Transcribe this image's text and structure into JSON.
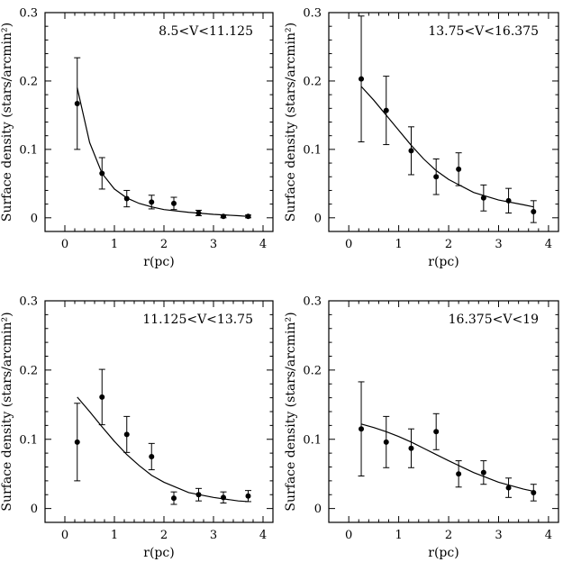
{
  "chart_data": [
    {
      "type": "scatter",
      "title": "8.5<V<11.125",
      "xlabel": "r(pc)",
      "ylabel": "Surface density (stars/arcmin²)",
      "xlim": [
        -0.4,
        4.2
      ],
      "ylim": [
        -0.02,
        0.3
      ],
      "xticks": [
        0,
        1,
        2,
        3,
        4
      ],
      "yticks": [
        0,
        0.1,
        0.2,
        0.3
      ],
      "xtick_labels": [
        "0",
        "1",
        "2",
        "3",
        "4"
      ],
      "ytick_labels": [
        "0",
        "0.1",
        "0.2",
        "0.3"
      ],
      "points": {
        "x": [
          0.25,
          0.75,
          1.25,
          1.75,
          2.2,
          2.7,
          3.2,
          3.7
        ],
        "y": [
          0.167,
          0.065,
          0.028,
          0.023,
          0.021,
          0.007,
          0.002,
          0.002
        ],
        "yerr": [
          0.067,
          0.023,
          0.012,
          0.01,
          0.009,
          0.004,
          0.002,
          0.002
        ]
      },
      "model": {
        "x": [
          0.25,
          0.5,
          0.75,
          1.0,
          1.25,
          1.5,
          1.75,
          2.0,
          2.5,
          3.0,
          3.5,
          3.7
        ],
        "y": [
          0.19,
          0.11,
          0.065,
          0.042,
          0.029,
          0.021,
          0.016,
          0.012,
          0.008,
          0.005,
          0.003,
          0.002
        ]
      }
    },
    {
      "type": "scatter",
      "title": "13.75<V<16.375",
      "xlabel": "r(pc)",
      "ylabel": "Surface density (stars/arcmin²)",
      "xlim": [
        -0.4,
        4.2
      ],
      "ylim": [
        -0.02,
        0.3
      ],
      "xticks": [
        0,
        1,
        2,
        3,
        4
      ],
      "yticks": [
        0,
        0.1,
        0.2,
        0.3
      ],
      "xtick_labels": [
        "0",
        "1",
        "2",
        "3",
        "4"
      ],
      "ytick_labels": [
        "0",
        "0.1",
        "0.2",
        "0.3"
      ],
      "points": {
        "x": [
          0.25,
          0.75,
          1.25,
          1.75,
          2.2,
          2.7,
          3.2,
          3.7
        ],
        "y": [
          0.203,
          0.157,
          0.098,
          0.06,
          0.071,
          0.029,
          0.025,
          0.009
        ],
        "yerr": [
          0.092,
          0.05,
          0.035,
          0.026,
          0.024,
          0.019,
          0.018,
          0.016
        ]
      },
      "model": {
        "x": [
          0.25,
          0.5,
          0.75,
          1.0,
          1.25,
          1.5,
          1.75,
          2.0,
          2.5,
          3.0,
          3.5,
          3.7
        ],
        "y": [
          0.192,
          0.172,
          0.15,
          0.128,
          0.106,
          0.086,
          0.069,
          0.056,
          0.037,
          0.026,
          0.019,
          0.016
        ]
      }
    },
    {
      "type": "scatter",
      "title": "11.125<V<13.75",
      "xlabel": "r(pc)",
      "ylabel": "Surface density (stars/arcmin²)",
      "xlim": [
        -0.4,
        4.2
      ],
      "ylim": [
        -0.02,
        0.3
      ],
      "xticks": [
        0,
        1,
        2,
        3,
        4
      ],
      "yticks": [
        0,
        0.1,
        0.2,
        0.3
      ],
      "xtick_labels": [
        "0",
        "1",
        "2",
        "3",
        "4"
      ],
      "ytick_labels": [
        "0",
        "0.1",
        "0.2",
        "0.3"
      ],
      "points": {
        "x": [
          0.25,
          0.75,
          1.25,
          1.75,
          2.2,
          2.7,
          3.2,
          3.7
        ],
        "y": [
          0.096,
          0.161,
          0.107,
          0.075,
          0.015,
          0.02,
          0.016,
          0.018
        ],
        "yerr": [
          0.056,
          0.04,
          0.026,
          0.019,
          0.009,
          0.009,
          0.008,
          0.008
        ]
      },
      "model": {
        "x": [
          0.25,
          0.5,
          0.75,
          1.0,
          1.25,
          1.5,
          1.75,
          2.0,
          2.5,
          3.0,
          3.5,
          3.7
        ],
        "y": [
          0.161,
          0.14,
          0.118,
          0.097,
          0.078,
          0.062,
          0.048,
          0.038,
          0.023,
          0.016,
          0.011,
          0.01
        ]
      }
    },
    {
      "type": "scatter",
      "title": "16.375<V<19",
      "xlabel": "r(pc)",
      "ylabel": "Surface density (stars/arcmin²)",
      "xlim": [
        -0.4,
        4.2
      ],
      "ylim": [
        -0.02,
        0.3
      ],
      "xticks": [
        0,
        1,
        2,
        3,
        4
      ],
      "yticks": [
        0,
        0.1,
        0.2,
        0.3
      ],
      "xtick_labels": [
        "0",
        "1",
        "2",
        "3",
        "4"
      ],
      "ytick_labels": [
        "0",
        "0.1",
        "0.2",
        "0.3"
      ],
      "points": {
        "x": [
          0.25,
          0.75,
          1.25,
          1.75,
          2.2,
          2.7,
          3.2,
          3.7
        ],
        "y": [
          0.115,
          0.096,
          0.087,
          0.111,
          0.05,
          0.052,
          0.03,
          0.023
        ],
        "yerr": [
          0.068,
          0.037,
          0.028,
          0.026,
          0.019,
          0.017,
          0.014,
          0.012
        ]
      },
      "model": {
        "x": [
          0.25,
          0.5,
          0.75,
          1.0,
          1.25,
          1.5,
          1.75,
          2.0,
          2.5,
          3.0,
          3.5,
          3.7
        ],
        "y": [
          0.122,
          0.117,
          0.111,
          0.104,
          0.096,
          0.087,
          0.078,
          0.069,
          0.052,
          0.038,
          0.028,
          0.025
        ]
      }
    }
  ]
}
